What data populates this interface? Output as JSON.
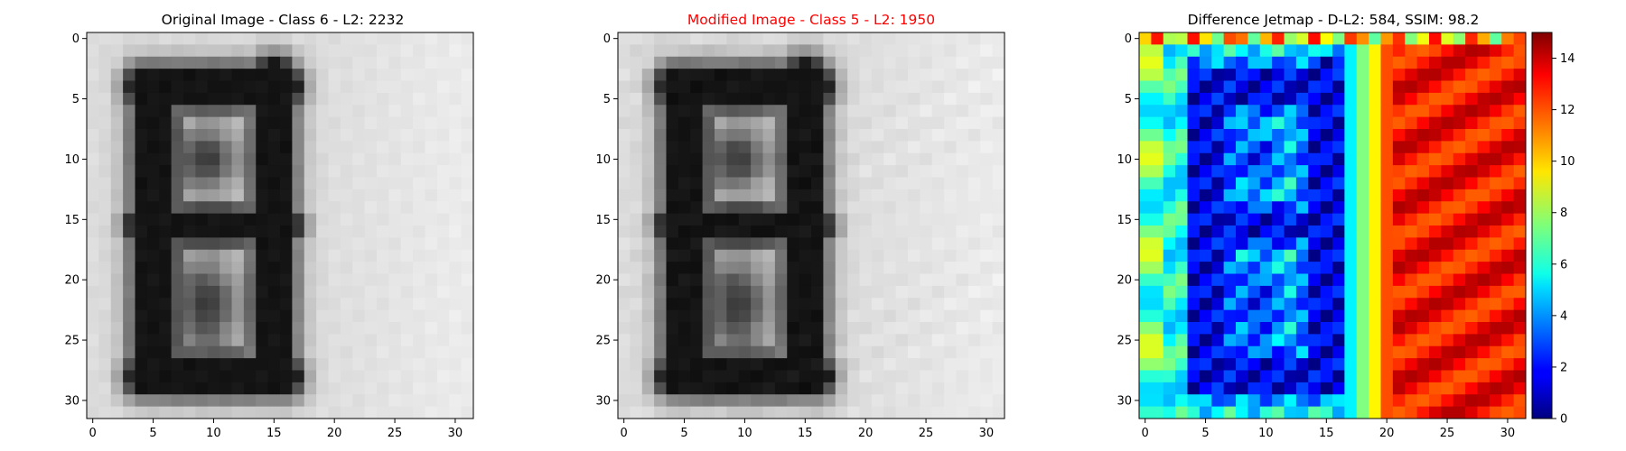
{
  "chart_data": [
    {
      "type": "heatmap",
      "title": "Original Image - Class 6 - L2: 2232",
      "title_color": "#000000",
      "colormap": "gray",
      "xlim": [
        -0.5,
        31.5
      ],
      "ylim": [
        31.5,
        -0.5
      ],
      "xticks": [
        0,
        5,
        10,
        15,
        20,
        25,
        30
      ],
      "yticks": [
        0,
        5,
        10,
        15,
        20,
        25,
        30
      ],
      "tick_labels": [
        "0",
        "5",
        "10",
        "15",
        "20",
        "25",
        "30"
      ],
      "grid": false,
      "grid_size": [
        32,
        32
      ]
    },
    {
      "type": "heatmap",
      "title": "Modified Image - Class 5 - L2: 1950",
      "title_color": "#ff0000",
      "colormap": "gray",
      "xlim": [
        -0.5,
        31.5
      ],
      "ylim": [
        31.5,
        -0.5
      ],
      "xticks": [
        0,
        5,
        10,
        15,
        20,
        25,
        30
      ],
      "yticks": [
        0,
        5,
        10,
        15,
        20,
        25,
        30
      ],
      "tick_labels": [
        "0",
        "5",
        "10",
        "15",
        "20",
        "25",
        "30"
      ],
      "grid": false,
      "grid_size": [
        32,
        32
      ]
    },
    {
      "type": "heatmap",
      "title": "Difference Jetmap - D-L2: 584, SSIM: 98.2",
      "title_color": "#000000",
      "colormap": "jet",
      "xlim": [
        -0.5,
        31.5
      ],
      "ylim": [
        31.5,
        -0.5
      ],
      "xticks": [
        0,
        5,
        10,
        15,
        20,
        25,
        30
      ],
      "yticks": [
        0,
        5,
        10,
        15,
        20,
        25,
        30
      ],
      "tick_labels": [
        "0",
        "5",
        "10",
        "15",
        "20",
        "25",
        "30"
      ],
      "grid": false,
      "grid_size": [
        32,
        32
      ],
      "colorbar": {
        "range": [
          0,
          15
        ],
        "ticks": [
          0,
          2,
          4,
          6,
          8,
          10,
          12,
          14
        ],
        "tick_labels": [
          "0",
          "2",
          "4",
          "6",
          "8",
          "10",
          "12",
          "14"
        ]
      }
    }
  ]
}
